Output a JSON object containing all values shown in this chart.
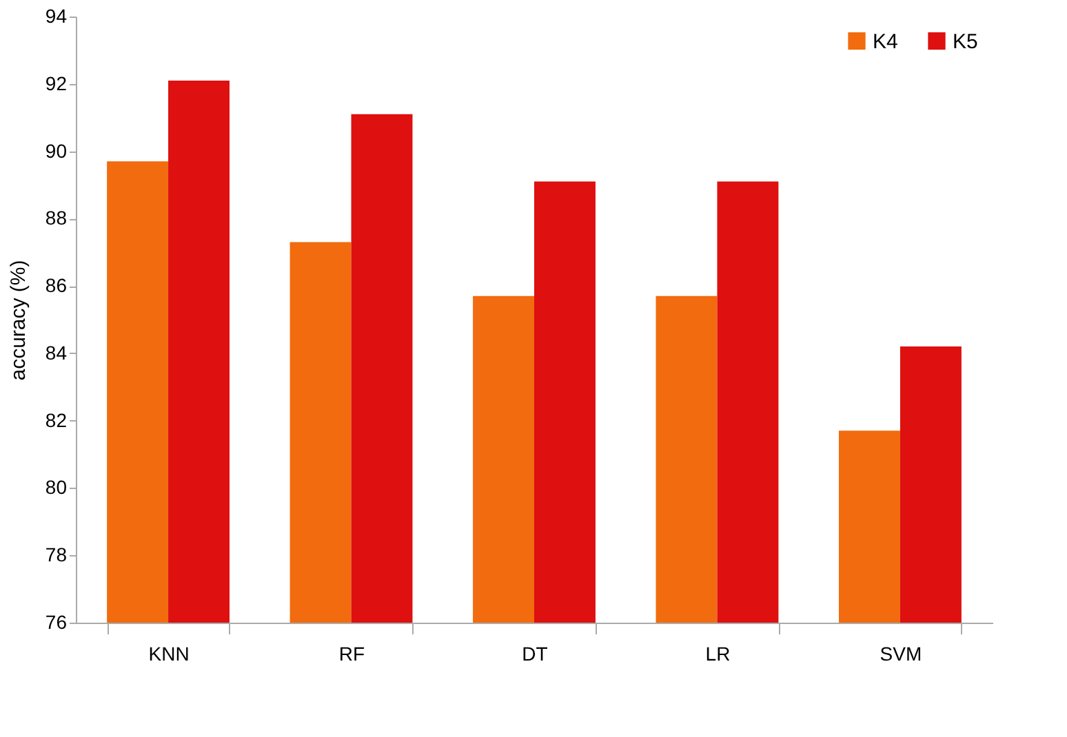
{
  "chart_data": {
    "type": "bar",
    "ylabel": "accuracy (%)",
    "categories": [
      "KNN",
      "RF",
      "DT",
      "LR",
      "SVM"
    ],
    "series": [
      {
        "name": "K4",
        "color": "#f26b0e",
        "values": [
          89.7,
          87.3,
          85.7,
          85.7,
          81.7
        ]
      },
      {
        "name": "K5",
        "color": "#de1010",
        "values": [
          92.1,
          91.1,
          89.1,
          89.1,
          84.2
        ]
      }
    ],
    "ylim": [
      76,
      94
    ],
    "yticks": [
      76,
      78,
      80,
      82,
      84,
      86,
      88,
      90,
      92,
      94
    ],
    "grid": false,
    "legend": "top right"
  }
}
